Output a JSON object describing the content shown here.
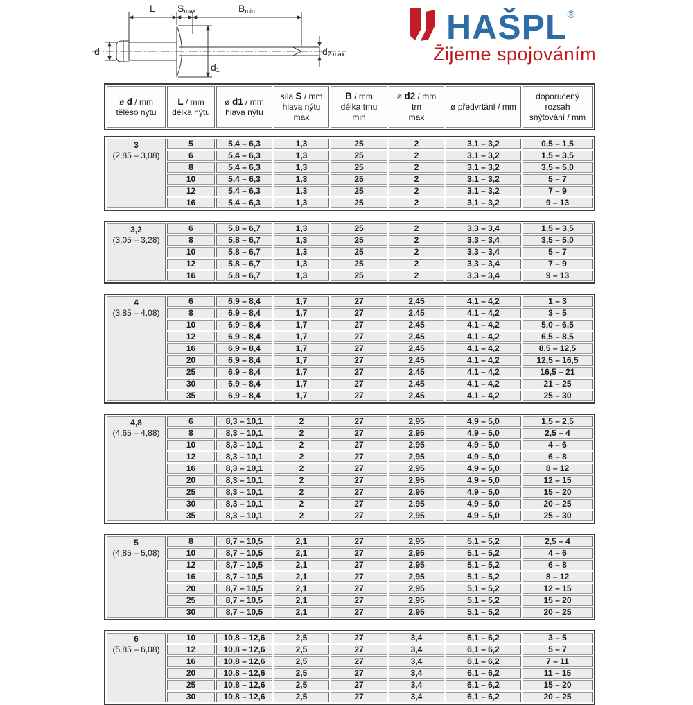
{
  "logo": {
    "brand": "HAŠPL",
    "registered": "®",
    "tagline": "Žijeme spojováním"
  },
  "colors": {
    "brand_blue": "#2e6ca8",
    "brand_red": "#c01e24",
    "cell_bg": "#ececec",
    "grid_line": "#8f8f8f",
    "frame_line": "#3d3d3d"
  },
  "diagram": {
    "labels": {
      "length": "L",
      "s_base": "S",
      "s_sub": "max",
      "b_base": "B",
      "b_sub": "min",
      "d": "d",
      "d1_base": "d",
      "d1_sub": "1",
      "d2_base": "d",
      "d2_sub": "2 max"
    }
  },
  "table": {
    "columns": [
      {
        "pre": "ø ",
        "bold": "d",
        "post": " / mm",
        "sub": [
          "tělěso nýtu"
        ]
      },
      {
        "pre": "",
        "bold": "L",
        "post": " / mm",
        "sub": [
          "délka nýtu"
        ]
      },
      {
        "pre": "ø ",
        "bold": "d1",
        "post": " / mm",
        "sub": [
          "hlava nýtu"
        ]
      },
      {
        "pre": "síla ",
        "bold": "S",
        "post": " / mm",
        "sub": [
          "hlava nýtu",
          "max"
        ]
      },
      {
        "pre": "",
        "bold": "B",
        "post": " / mm",
        "sub": [
          "délka trnu",
          "min"
        ]
      },
      {
        "pre": "ø ",
        "bold": "d2",
        "post": " / mm",
        "sub": [
          "trn",
          "max"
        ]
      },
      {
        "pre": "ø předvrtání / mm",
        "bold": "",
        "post": "",
        "sub": []
      },
      {
        "pre": "doporučený",
        "bold": "",
        "post": "",
        "sub": [
          "rozsah",
          "snýtování / mm"
        ]
      }
    ],
    "groups": [
      {
        "d": "3",
        "range": "(2,85 – 3,08)",
        "rows": [
          [
            "5",
            "5,4 – 6,3",
            "1,3",
            "25",
            "2",
            "3,1 – 3,2",
            "0,5 – 1,5"
          ],
          [
            "6",
            "5,4 – 6,3",
            "1,3",
            "25",
            "2",
            "3,1 – 3,2",
            "1,5 – 3,5"
          ],
          [
            "8",
            "5,4 – 6,3",
            "1,3",
            "25",
            "2",
            "3,1 – 3,2",
            "3,5 – 5,0"
          ],
          [
            "10",
            "5,4 – 6,3",
            "1,3",
            "25",
            "2",
            "3,1 – 3,2",
            "5 – 7"
          ],
          [
            "12",
            "5,4 – 6,3",
            "1,3",
            "25",
            "2",
            "3,1 – 3,2",
            "7 – 9"
          ],
          [
            "16",
            "5,4 – 6,3",
            "1,3",
            "25",
            "2",
            "3,1 – 3,2",
            "9 – 13"
          ]
        ]
      },
      {
        "d": "3,2",
        "range": "(3,05 – 3,28)",
        "rows": [
          [
            "6",
            "5,8 – 6,7",
            "1,3",
            "25",
            "2",
            "3,3 – 3,4",
            "1,5 – 3,5"
          ],
          [
            "8",
            "5,8 – 6,7",
            "1,3",
            "25",
            "2",
            "3,3 – 3,4",
            "3,5 – 5,0"
          ],
          [
            "10",
            "5,8 – 6,7",
            "1,3",
            "25",
            "2",
            "3,3 – 3,4",
            "5 – 7"
          ],
          [
            "12",
            "5,8 – 6,7",
            "1,3",
            "25",
            "2",
            "3,3 – 3,4",
            "7 – 9"
          ],
          [
            "16",
            "5,8 – 6,7",
            "1,3",
            "25",
            "2",
            "3,3 – 3,4",
            "9 – 13"
          ]
        ]
      },
      {
        "d": "4",
        "range": "(3,85 – 4,08)",
        "rows": [
          [
            "6",
            "6,9 – 8,4",
            "1,7",
            "27",
            "2,45",
            "4,1 – 4,2",
            "1 – 3"
          ],
          [
            "8",
            "6,9 – 8,4",
            "1,7",
            "27",
            "2,45",
            "4,1 – 4,2",
            "3 – 5"
          ],
          [
            "10",
            "6,9 – 8,4",
            "1,7",
            "27",
            "2,45",
            "4,1 – 4,2",
            "5,0 – 6,5"
          ],
          [
            "12",
            "6,9 – 8,4",
            "1,7",
            "27",
            "2,45",
            "4,1 – 4,2",
            "6,5 – 8,5"
          ],
          [
            "16",
            "6,9 – 8,4",
            "1,7",
            "27",
            "2,45",
            "4,1 – 4,2",
            "8,5 – 12,5"
          ],
          [
            "20",
            "6,9 – 8,4",
            "1,7",
            "27",
            "2,45",
            "4,1 – 4,2",
            "12,5 – 16,5"
          ],
          [
            "25",
            "6,9 – 8,4",
            "1,7",
            "27",
            "2,45",
            "4,1 – 4,2",
            "16,5 – 21"
          ],
          [
            "30",
            "6,9 – 8,4",
            "1,7",
            "27",
            "2,45",
            "4,1 – 4,2",
            "21 – 25"
          ],
          [
            "35",
            "6,9 – 8,4",
            "1,7",
            "27",
            "2,45",
            "4,1 – 4,2",
            "25 – 30"
          ]
        ]
      },
      {
        "d": "4,8",
        "range": "(4,65 – 4,88)",
        "rows": [
          [
            "6",
            "8,3 – 10,1",
            "2",
            "27",
            "2,95",
            "4,9 – 5,0",
            "1,5 – 2,5"
          ],
          [
            "8",
            "8,3 – 10,1",
            "2",
            "27",
            "2,95",
            "4,9 – 5,0",
            "2,5 – 4"
          ],
          [
            "10",
            "8,3 – 10,1",
            "2",
            "27",
            "2,95",
            "4,9 – 5,0",
            "4 – 6"
          ],
          [
            "12",
            "8,3 – 10,1",
            "2",
            "27",
            "2,95",
            "4,9 – 5,0",
            "6 – 8"
          ],
          [
            "16",
            "8,3 – 10,1",
            "2",
            "27",
            "2,95",
            "4,9 – 5,0",
            "8 – 12"
          ],
          [
            "20",
            "8,3 – 10,1",
            "2",
            "27",
            "2,95",
            "4,9 – 5,0",
            "12 – 15"
          ],
          [
            "25",
            "8,3 – 10,1",
            "2",
            "27",
            "2,95",
            "4,9 – 5,0",
            "15 – 20"
          ],
          [
            "30",
            "8,3 – 10,1",
            "2",
            "27",
            "2,95",
            "4,9 – 5,0",
            "20 – 25"
          ],
          [
            "35",
            "8,3 – 10,1",
            "2",
            "27",
            "2,95",
            "4,9 – 5,0",
            "25 – 30"
          ]
        ]
      },
      {
        "d": "5",
        "range": "(4,85 – 5,08)",
        "rows": [
          [
            "8",
            "8,7 – 10,5",
            "2,1",
            "27",
            "2,95",
            "5,1 – 5,2",
            "2,5 – 4"
          ],
          [
            "10",
            "8,7 – 10,5",
            "2,1",
            "27",
            "2,95",
            "5,1 – 5,2",
            "4 – 6"
          ],
          [
            "12",
            "8,7 – 10,5",
            "2,1",
            "27",
            "2,95",
            "5,1 – 5,2",
            "6 – 8"
          ],
          [
            "16",
            "8,7 – 10,5",
            "2,1",
            "27",
            "2,95",
            "5,1 – 5,2",
            "8 – 12"
          ],
          [
            "20",
            "8,7 – 10,5",
            "2,1",
            "27",
            "2,95",
            "5,1 – 5,2",
            "12 – 15"
          ],
          [
            "25",
            "8,7 – 10,5",
            "2,1",
            "27",
            "2,95",
            "5,1 – 5,2",
            "15 – 20"
          ],
          [
            "30",
            "8,7 – 10,5",
            "2,1",
            "27",
            "2,95",
            "5,1 – 5,2",
            "20 – 25"
          ]
        ]
      },
      {
        "d": "6",
        "range": "(5,85 – 6,08)",
        "rows": [
          [
            "10",
            "10,8 – 12,6",
            "2,5",
            "27",
            "3,4",
            "6,1 – 6,2",
            "3 – 5"
          ],
          [
            "12",
            "10,8 – 12,6",
            "2,5",
            "27",
            "3,4",
            "6,1 – 6,2",
            "5 – 7"
          ],
          [
            "16",
            "10,8 – 12,6",
            "2,5",
            "27",
            "3,4",
            "6,1 – 6,2",
            "7 – 11"
          ],
          [
            "20",
            "10,8 – 12,6",
            "2,5",
            "27",
            "3,4",
            "6,1 – 6,2",
            "11 – 15"
          ],
          [
            "25",
            "10,8 – 12,6",
            "2,5",
            "27",
            "3,4",
            "6,1 – 6,2",
            "15 – 20"
          ],
          [
            "30",
            "10,8 – 12,6",
            "2,5",
            "27",
            "3,4",
            "6,1 – 6,2",
            "20 – 25"
          ]
        ]
      }
    ]
  }
}
